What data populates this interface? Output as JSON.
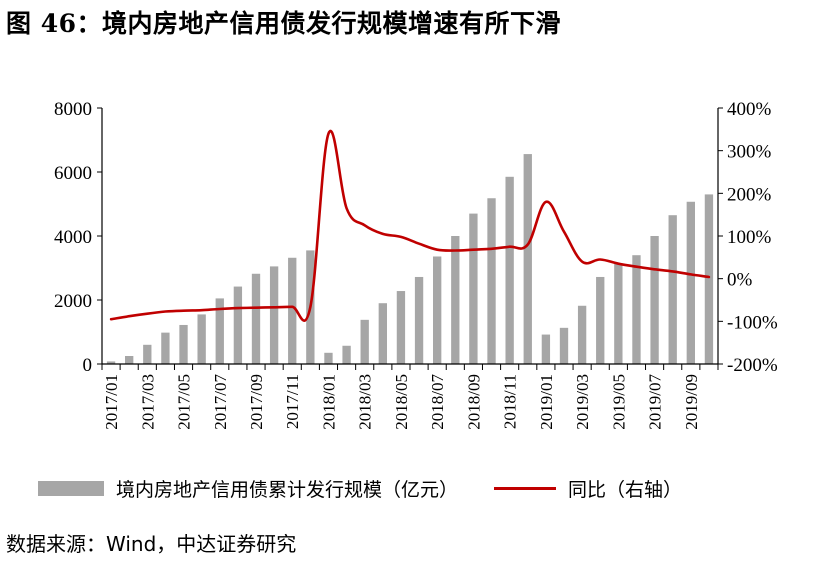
{
  "figure_title": "图 46：境内房地产信用债发行规模增速有所下滑",
  "source_note": "数据来源：Wind，中达证券研究",
  "colors": {
    "bar": "#a6a6a6",
    "line": "#c00000",
    "axis": "#000000"
  },
  "chart_data": {
    "type": "bar+line",
    "x": [
      "2017/01",
      "2017/02",
      "2017/03",
      "2017/04",
      "2017/05",
      "2017/06",
      "2017/07",
      "2017/08",
      "2017/09",
      "2017/10",
      "2017/11",
      "2017/12",
      "2018/01",
      "2018/02",
      "2018/03",
      "2018/04",
      "2018/05",
      "2018/06",
      "2018/07",
      "2018/08",
      "2018/09",
      "2018/10",
      "2018/11",
      "2018/12",
      "2019/01",
      "2019/02",
      "2019/03",
      "2019/04",
      "2019/05",
      "2019/06",
      "2019/07",
      "2019/08",
      "2019/09",
      "2019/10"
    ],
    "x_tick_labels": [
      "2017/01",
      "2017/03",
      "2017/05",
      "2017/07",
      "2017/09",
      "2017/11",
      "2018/01",
      "2018/03",
      "2018/05",
      "2018/07",
      "2018/09",
      "2018/11",
      "2019/01",
      "2019/03",
      "2019/05",
      "2019/07",
      "2019/09"
    ],
    "series": [
      {
        "name": "境内房地产信用债累计发行规模（亿元）",
        "type": "bar",
        "axis": "left",
        "values": [
          80,
          250,
          600,
          980,
          1220,
          1550,
          2050,
          2420,
          2820,
          3050,
          3320,
          3550,
          350,
          570,
          1380,
          1900,
          2280,
          2720,
          3360,
          4000,
          4700,
          5180,
          5850,
          6560,
          920,
          1130,
          1820,
          2720,
          3150,
          3400,
          4000,
          4650,
          5070,
          5300
        ]
      },
      {
        "name": "同比（右轴）",
        "type": "line",
        "axis": "right",
        "values": [
          -95,
          -88,
          -82,
          -77,
          -75,
          -74,
          -71,
          -69,
          -68,
          -67,
          -66,
          -66,
          340,
          165,
          125,
          105,
          98,
          82,
          68,
          66,
          68,
          70,
          75,
          80,
          180,
          110,
          40,
          45,
          35,
          28,
          22,
          17,
          10,
          4
        ]
      }
    ],
    "y_left": {
      "min": 0,
      "max": 8000,
      "ticks": [
        "0",
        "2000",
        "4000",
        "6000",
        "8000"
      ]
    },
    "y_right": {
      "min": -200,
      "max": 400,
      "ticks": [
        "-200%",
        "-100%",
        "0%",
        "100%",
        "200%",
        "300%",
        "400%"
      ]
    },
    "legend": [
      "境内房地产信用债累计发行规模（亿元）",
      "同比（右轴）"
    ]
  }
}
